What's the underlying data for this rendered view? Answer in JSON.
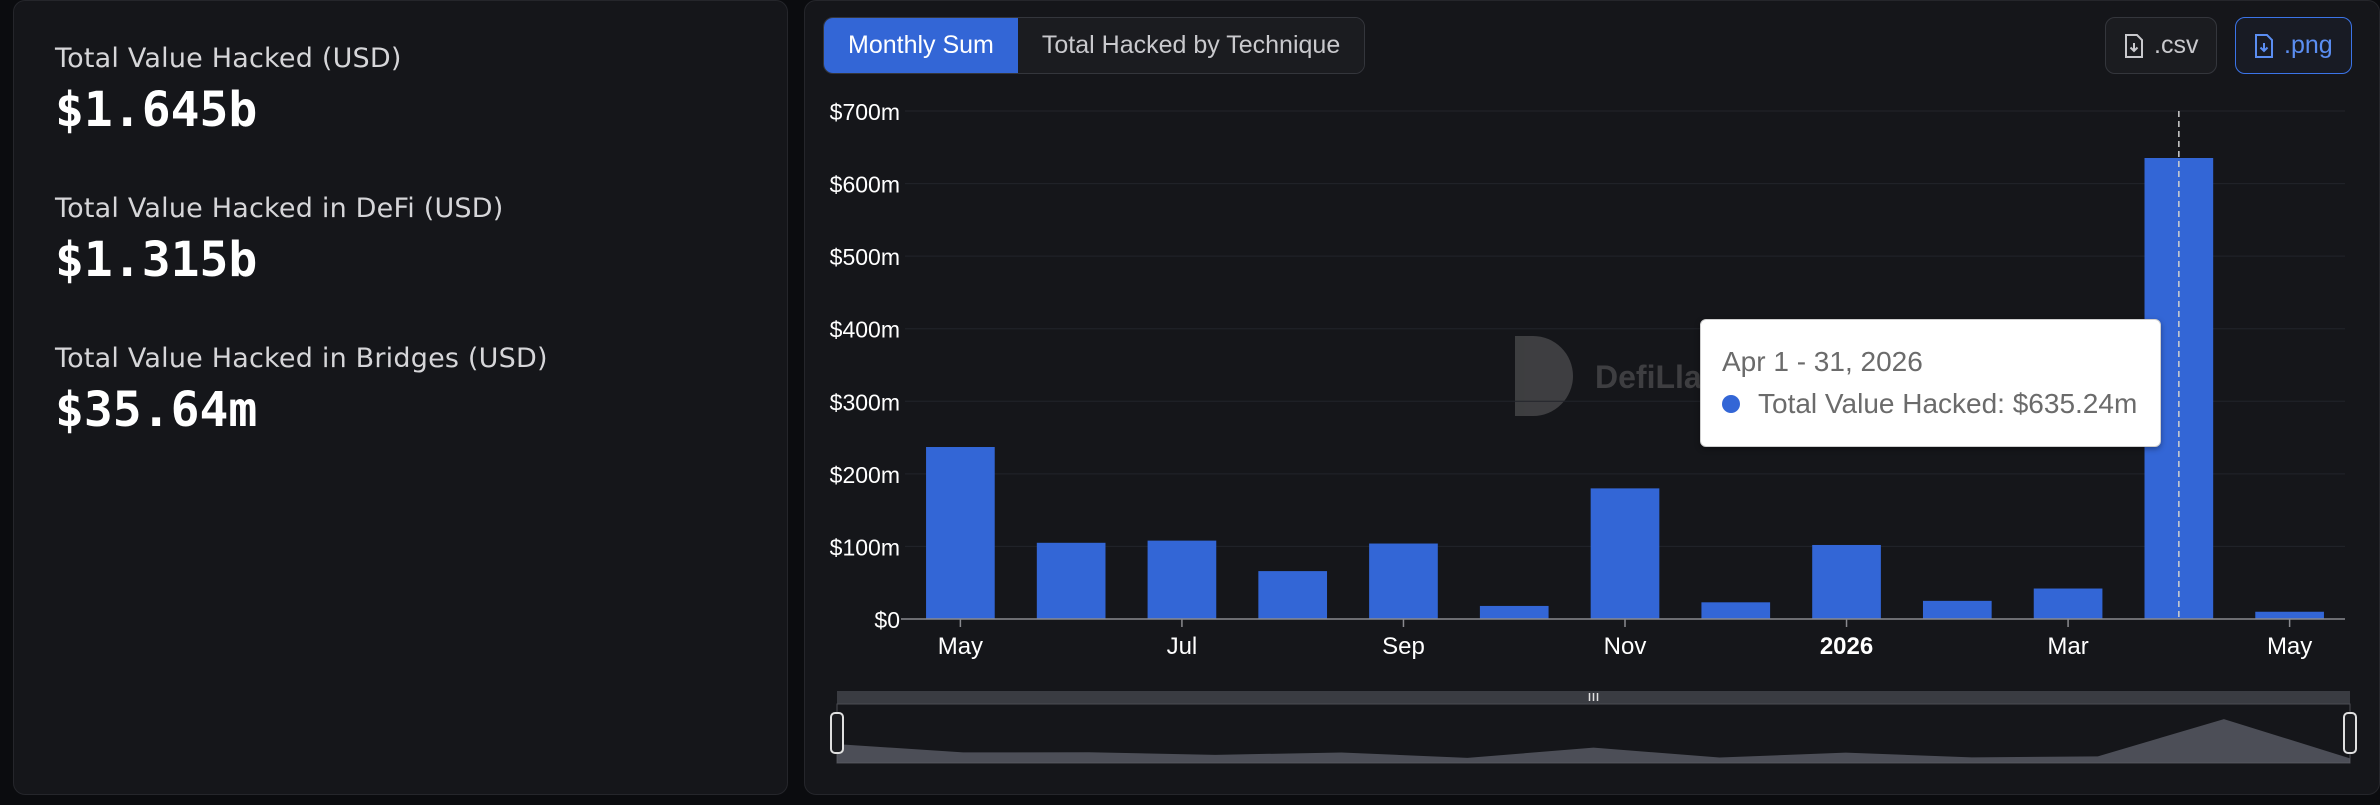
{
  "stats": [
    {
      "label": "Total Value Hacked (USD)",
      "value": "$1.645b"
    },
    {
      "label": "Total Value Hacked in DeFi (USD)",
      "value": "$1.315b"
    },
    {
      "label": "Total Value Hacked in Bridges (USD)",
      "value": "$35.64m"
    }
  ],
  "toolbar": {
    "tab_monthly": "Monthly Sum",
    "tab_technique": "Total Hacked by Technique",
    "csv_label": ".csv",
    "png_label": ".png"
  },
  "tooltip": {
    "date": "Apr 1 - 31, 2026",
    "series_label": "Total Value Hacked: $635.24m"
  },
  "watermark": "DefiLlama",
  "colors": {
    "bar": "#3366d6",
    "background": "#15161a",
    "accent": "#3b74e8"
  },
  "chart_data": {
    "type": "bar",
    "categories": [
      "May 2025",
      "Jun 2025",
      "Jul 2025",
      "Aug 2025",
      "Sep 2025",
      "Oct 2025",
      "Nov 2025",
      "Dec 2025",
      "Jan 2026",
      "Feb 2026",
      "Mar 2026",
      "Apr 2026",
      "May 2026"
    ],
    "series": [
      {
        "name": "Total Value Hacked",
        "values": [
          237,
          105,
          108,
          66,
          104,
          18,
          180,
          23,
          102,
          25,
          42,
          635.24,
          10
        ]
      }
    ],
    "ylim": [
      0,
      700
    ],
    "yticks": [
      "$0",
      "$100m",
      "$200m",
      "$300m",
      "$400m",
      "$500m",
      "$600m",
      "$700m"
    ],
    "xtick_labels": [
      {
        "index": 0,
        "label": "May"
      },
      {
        "index": 2,
        "label": "Jul"
      },
      {
        "index": 4,
        "label": "Sep"
      },
      {
        "index": 6,
        "label": "Nov"
      },
      {
        "index": 8,
        "label": "2026",
        "bold": true
      },
      {
        "index": 10,
        "label": "Mar"
      },
      {
        "index": 12,
        "label": "May"
      }
    ],
    "highlighted_index": 11,
    "grid": true
  }
}
